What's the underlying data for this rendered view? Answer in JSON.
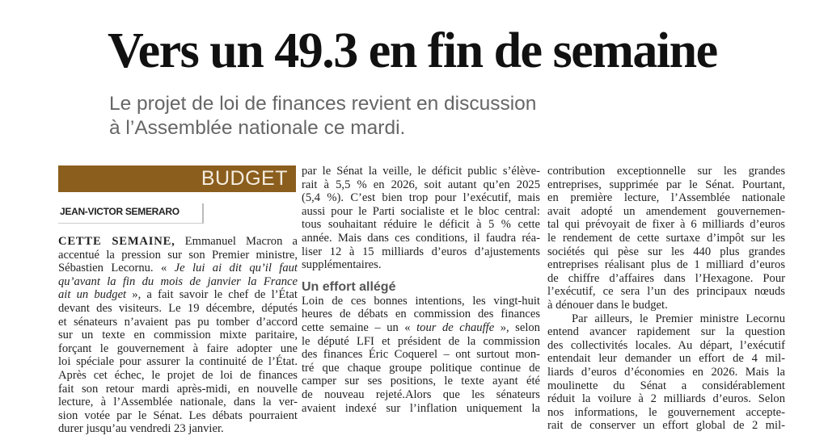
{
  "headline": "Vers un 49.3 en fin de semaine",
  "subtitle": [
    "Le projet de loi de finances revient en discussion",
    "à l’Assemblée nationale ce mardi."
  ],
  "section_label": "BUDGET",
  "section_color": "#8b5e1e",
  "byline": "JEAN-VICTOR SEMERARO",
  "column1": {
    "lead_in": "CETTE SEMAINE,",
    "lines": [
      " Emmanuel Macron a",
      "accentué la pression sur son Premier ministre,",
      "Sébastien Lecornu. « Je lui ai dit qu’il faut",
      "qu’avant la fin du mois de janvier la France",
      "ait un budget », a fait savoir le chef de l’État",
      "devant des visiteurs. Le 19 décembre, députés",
      "et sénateurs n’avaient pas pu tomber d’accord",
      "sur un texte en commission mixte paritaire,",
      "forçant le gouvernement à faire adopter une",
      "loi spéciale pour assurer la continuité de l’État.",
      "Après cet échec, le projet de loi de finances",
      "fait son retour mardi après-midi, en nouvelle",
      "lecture, à l’Assemblée nationale, dans la ver-",
      "sion votée par le Sénat. Les débats pourraient",
      "durer jusqu’au vendredi 23 janvier."
    ]
  },
  "column2": {
    "lines_before": [
      "par le Sénat la veille, le déficit public s’élève-",
      "rait à 5,5 % en 2026, soit autant qu’en 2025",
      "(5,4 %). C’est bien trop pour l’exécutif, mais",
      "aussi pour le Parti socialiste et le bloc central:",
      "tous souhaitant réduire le déficit à 5 % cette",
      "année. Mais dans ces conditions, il faudra réa-",
      "liser 12 à 15 milliards d’euros d’ajustements",
      "supplémentaires."
    ],
    "subhead": "Un effort allégé",
    "lines_after": [
      "Loin de ces bonnes intentions, les vingt-huit",
      "heures de débats en commission des finances",
      "cette semaine – un « tour de chauffe », selon",
      "le député LFI et président de la commission",
      "des finances Éric Coquerel – ont surtout mon-",
      "tré que chaque groupe politique continue de",
      "camper sur ses positions, le texte ayant été",
      "de nouveau rejeté.Alors que les sénateurs",
      "avaient indexé sur l’inflation uniquement la"
    ]
  },
  "column3": {
    "lines": [
      "contribution exceptionnelle sur les grandes",
      "entreprises, supprimée par le Sénat. Pourtant,",
      "en première lecture, l’Assemblée nationale",
      "avait adopté un amendement gouvernemen-",
      "tal qui prévoyait de fixer à 6 milliards d’euros",
      "le rendement de cette surtaxe d’impôt sur les",
      "sociétés qui pèse sur les 440 plus grandes",
      "entreprises réalisant plus de 1 milliard d’euros",
      "de chiffre d’affaires dans l’Hexagone. Pour",
      "l’exécutif, ce sera l’un des principaux nœuds",
      "à dénouer dans le budget.",
      "Par ailleurs, le Premier ministre Lecornu",
      "entend avancer rapidement sur la question",
      "des collectivités locales. Au départ, l’exécutif",
      "entendait leur demander un effort de 4 mil-",
      "liards d’euros d’économies en 2026. Mais la",
      "moulinette du Sénat a considérablement",
      "réduit la voilure à 2 milliards d’euros. Selon",
      "nos informations, le gouvernement accepte-",
      "rait de conserver un effort global de 2 mil-"
    ]
  }
}
